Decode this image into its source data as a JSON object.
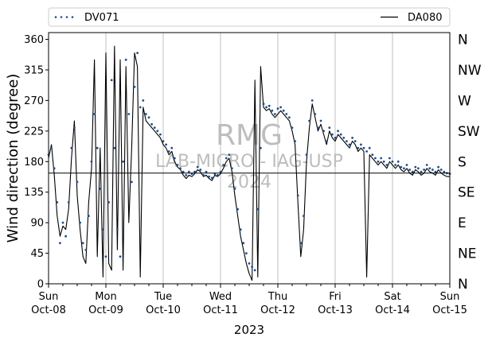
{
  "chart_data": {
    "type": "line",
    "ylabel": "Wind direction (degree)",
    "xlabel": "2023",
    "ylim": [
      0,
      370
    ],
    "xlim": [
      0,
      7
    ],
    "grid": "vertical lines at each day",
    "legend_position": "top, above plot",
    "yticks": [
      0,
      45,
      90,
      135,
      180,
      225,
      270,
      315,
      360
    ],
    "xticks": [
      {
        "day": 0,
        "top": "Sun",
        "bottom": "Oct-08"
      },
      {
        "day": 1,
        "top": "Mon",
        "bottom": "Oct-09"
      },
      {
        "day": 2,
        "top": "Tue",
        "bottom": "Oct-10"
      },
      {
        "day": 3,
        "top": "Wed",
        "bottom": "Oct-11"
      },
      {
        "day": 4,
        "top": "Thu",
        "bottom": "Oct-12"
      },
      {
        "day": 5,
        "top": "Fri",
        "bottom": "Oct-13"
      },
      {
        "day": 6,
        "top": "Sat",
        "bottom": "Oct-14"
      },
      {
        "day": 7,
        "top": "Sun",
        "bottom": "Oct-15"
      }
    ],
    "compass_labels": [
      {
        "value": 0,
        "label": "N"
      },
      {
        "value": 45,
        "label": "NE"
      },
      {
        "value": 90,
        "label": "E"
      },
      {
        "value": 135,
        "label": "SE"
      },
      {
        "value": 180,
        "label": "S"
      },
      {
        "value": 225,
        "label": "SW"
      },
      {
        "value": 270,
        "label": "W"
      },
      {
        "value": 315,
        "label": "NW"
      },
      {
        "value": 360,
        "label": "N"
      }
    ],
    "reference_line": 163,
    "watermark": [
      "RMG",
      "LAB-MICRO - IAG-USP",
      "2024"
    ],
    "series": [
      {
        "name": "DV071",
        "style": "dotted",
        "color": "#1f4e8c",
        "points": [
          [
            0.0,
            190
          ],
          [
            0.05,
            200
          ],
          [
            0.1,
            170
          ],
          [
            0.15,
            120
          ],
          [
            0.2,
            60
          ],
          [
            0.25,
            90
          ],
          [
            0.3,
            70
          ],
          [
            0.35,
            120
          ],
          [
            0.4,
            200
          ],
          [
            0.45,
            230
          ],
          [
            0.5,
            150
          ],
          [
            0.55,
            90
          ],
          [
            0.6,
            60
          ],
          [
            0.65,
            50
          ],
          [
            0.7,
            100
          ],
          [
            0.75,
            180
          ],
          [
            0.8,
            250
          ],
          [
            0.85,
            200
          ],
          [
            0.9,
            140
          ],
          [
            0.95,
            80
          ],
          [
            1.0,
            40
          ],
          [
            1.05,
            120
          ],
          [
            1.1,
            300
          ],
          [
            1.15,
            200
          ],
          [
            1.2,
            80
          ],
          [
            1.25,
            40
          ],
          [
            1.3,
            180
          ],
          [
            1.35,
            330
          ],
          [
            1.4,
            250
          ],
          [
            1.45,
            150
          ],
          [
            1.5,
            290
          ],
          [
            1.55,
            340
          ],
          [
            1.6,
            260
          ],
          [
            1.65,
            270
          ],
          [
            1.7,
            250
          ],
          [
            1.75,
            245
          ],
          [
            1.8,
            235
          ],
          [
            1.85,
            230
          ],
          [
            1.9,
            225
          ],
          [
            1.95,
            220
          ],
          [
            2.0,
            210
          ],
          [
            2.05,
            205
          ],
          [
            2.1,
            195
          ],
          [
            2.15,
            200
          ],
          [
            2.2,
            185
          ],
          [
            2.25,
            175
          ],
          [
            2.3,
            170
          ],
          [
            2.35,
            165
          ],
          [
            2.4,
            160
          ],
          [
            2.45,
            165
          ],
          [
            2.5,
            162
          ],
          [
            2.55,
            165
          ],
          [
            2.6,
            172
          ],
          [
            2.65,
            168
          ],
          [
            2.7,
            160
          ],
          [
            2.75,
            165
          ],
          [
            2.8,
            158
          ],
          [
            2.85,
            156
          ],
          [
            2.9,
            162
          ],
          [
            2.95,
            160
          ],
          [
            3.0,
            165
          ],
          [
            3.05,
            175
          ],
          [
            3.1,
            185
          ],
          [
            3.15,
            190
          ],
          [
            3.2,
            170
          ],
          [
            3.25,
            140
          ],
          [
            3.3,
            110
          ],
          [
            3.35,
            80
          ],
          [
            3.4,
            60
          ],
          [
            3.45,
            45
          ],
          [
            3.5,
            30
          ],
          [
            3.55,
            25
          ],
          [
            3.6,
            20
          ],
          [
            3.65,
            110
          ],
          [
            3.7,
            200
          ],
          [
            3.75,
            265
          ],
          [
            3.8,
            260
          ],
          [
            3.85,
            262
          ],
          [
            3.9,
            255
          ],
          [
            3.95,
            250
          ],
          [
            4.0,
            258
          ],
          [
            4.05,
            260
          ],
          [
            4.1,
            255
          ],
          [
            4.15,
            250
          ],
          [
            4.2,
            245
          ],
          [
            4.25,
            230
          ],
          [
            4.3,
            210
          ],
          [
            4.35,
            130
          ],
          [
            4.4,
            60
          ],
          [
            4.45,
            100
          ],
          [
            4.5,
            190
          ],
          [
            4.55,
            240
          ],
          [
            4.6,
            270
          ],
          [
            4.65,
            250
          ],
          [
            4.7,
            230
          ],
          [
            4.75,
            240
          ],
          [
            4.8,
            225
          ],
          [
            4.85,
            210
          ],
          [
            4.9,
            230
          ],
          [
            4.95,
            220
          ],
          [
            5.0,
            215
          ],
          [
            5.05,
            225
          ],
          [
            5.1,
            220
          ],
          [
            5.15,
            215
          ],
          [
            5.2,
            210
          ],
          [
            5.25,
            205
          ],
          [
            5.3,
            215
          ],
          [
            5.35,
            210
          ],
          [
            5.4,
            200
          ],
          [
            5.45,
            205
          ],
          [
            5.5,
            200
          ],
          [
            5.55,
            195
          ],
          [
            5.6,
            200
          ],
          [
            5.65,
            190
          ],
          [
            5.7,
            185
          ],
          [
            5.75,
            180
          ],
          [
            5.8,
            185
          ],
          [
            5.85,
            180
          ],
          [
            5.9,
            175
          ],
          [
            5.95,
            185
          ],
          [
            6.0,
            180
          ],
          [
            6.05,
            175
          ],
          [
            6.1,
            180
          ],
          [
            6.15,
            172
          ],
          [
            6.2,
            170
          ],
          [
            6.25,
            175
          ],
          [
            6.3,
            168
          ],
          [
            6.35,
            165
          ],
          [
            6.4,
            172
          ],
          [
            6.45,
            170
          ],
          [
            6.5,
            165
          ],
          [
            6.55,
            168
          ],
          [
            6.6,
            175
          ],
          [
            6.65,
            170
          ],
          [
            6.7,
            168
          ],
          [
            6.75,
            165
          ],
          [
            6.8,
            172
          ],
          [
            6.85,
            168
          ],
          [
            6.9,
            165
          ],
          [
            6.95,
            163
          ],
          [
            7.0,
            162
          ]
        ]
      },
      {
        "name": "DA080",
        "style": "solid",
        "color": "#000000",
        "points": [
          [
            0.0,
            185
          ],
          [
            0.05,
            205
          ],
          [
            0.1,
            160
          ],
          [
            0.15,
            100
          ],
          [
            0.2,
            70
          ],
          [
            0.25,
            85
          ],
          [
            0.3,
            80
          ],
          [
            0.35,
            110
          ],
          [
            0.4,
            185
          ],
          [
            0.45,
            240
          ],
          [
            0.5,
            130
          ],
          [
            0.55,
            80
          ],
          [
            0.6,
            40
          ],
          [
            0.65,
            30
          ],
          [
            0.7,
            120
          ],
          [
            0.75,
            170
          ],
          [
            0.8,
            330
          ],
          [
            0.85,
            40
          ],
          [
            0.9,
            200
          ],
          [
            0.95,
            10
          ],
          [
            1.0,
            340
          ],
          [
            1.05,
            30
          ],
          [
            1.1,
            20
          ],
          [
            1.15,
            350
          ],
          [
            1.2,
            50
          ],
          [
            1.25,
            330
          ],
          [
            1.3,
            20
          ],
          [
            1.35,
            320
          ],
          [
            1.4,
            90
          ],
          [
            1.45,
            200
          ],
          [
            1.5,
            340
          ],
          [
            1.55,
            320
          ],
          [
            1.6,
            10
          ],
          [
            1.65,
            260
          ],
          [
            1.7,
            240
          ],
          [
            1.75,
            235
          ],
          [
            1.8,
            230
          ],
          [
            1.85,
            225
          ],
          [
            1.9,
            220
          ],
          [
            1.95,
            215
          ],
          [
            2.0,
            205
          ],
          [
            2.05,
            200
          ],
          [
            2.1,
            190
          ],
          [
            2.15,
            195
          ],
          [
            2.2,
            180
          ],
          [
            2.25,
            172
          ],
          [
            2.3,
            168
          ],
          [
            2.35,
            160
          ],
          [
            2.4,
            155
          ],
          [
            2.45,
            160
          ],
          [
            2.5,
            158
          ],
          [
            2.55,
            162
          ],
          [
            2.6,
            168
          ],
          [
            2.65,
            165
          ],
          [
            2.7,
            158
          ],
          [
            2.75,
            160
          ],
          [
            2.8,
            155
          ],
          [
            2.85,
            152
          ],
          [
            2.9,
            160
          ],
          [
            2.95,
            158
          ],
          [
            3.0,
            162
          ],
          [
            3.05,
            170
          ],
          [
            3.1,
            180
          ],
          [
            3.15,
            185
          ],
          [
            3.2,
            165
          ],
          [
            3.25,
            130
          ],
          [
            3.3,
            100
          ],
          [
            3.35,
            70
          ],
          [
            3.4,
            50
          ],
          [
            3.45,
            30
          ],
          [
            3.5,
            15
          ],
          [
            3.55,
            5
          ],
          [
            3.6,
            300
          ],
          [
            3.65,
            10
          ],
          [
            3.7,
            320
          ],
          [
            3.75,
            260
          ],
          [
            3.8,
            255
          ],
          [
            3.85,
            258
          ],
          [
            3.9,
            250
          ],
          [
            3.95,
            245
          ],
          [
            4.0,
            250
          ],
          [
            4.05,
            255
          ],
          [
            4.1,
            250
          ],
          [
            4.15,
            245
          ],
          [
            4.2,
            240
          ],
          [
            4.25,
            225
          ],
          [
            4.3,
            205
          ],
          [
            4.35,
            120
          ],
          [
            4.4,
            40
          ],
          [
            4.45,
            80
          ],
          [
            4.5,
            180
          ],
          [
            4.55,
            230
          ],
          [
            4.6,
            265
          ],
          [
            4.65,
            245
          ],
          [
            4.7,
            225
          ],
          [
            4.75,
            235
          ],
          [
            4.8,
            220
          ],
          [
            4.85,
            205
          ],
          [
            4.9,
            225
          ],
          [
            4.95,
            215
          ],
          [
            5.0,
            210
          ],
          [
            5.05,
            220
          ],
          [
            5.1,
            215
          ],
          [
            5.15,
            210
          ],
          [
            5.2,
            205
          ],
          [
            5.25,
            200
          ],
          [
            5.3,
            210
          ],
          [
            5.35,
            205
          ],
          [
            5.4,
            195
          ],
          [
            5.45,
            200
          ],
          [
            5.5,
            195
          ],
          [
            5.55,
            10
          ],
          [
            5.6,
            190
          ],
          [
            5.65,
            185
          ],
          [
            5.7,
            180
          ],
          [
            5.75,
            175
          ],
          [
            5.8,
            180
          ],
          [
            5.85,
            175
          ],
          [
            5.9,
            170
          ],
          [
            5.95,
            180
          ],
          [
            6.0,
            175
          ],
          [
            6.05,
            170
          ],
          [
            6.1,
            175
          ],
          [
            6.15,
            168
          ],
          [
            6.2,
            165
          ],
          [
            6.25,
            170
          ],
          [
            6.3,
            163
          ],
          [
            6.35,
            160
          ],
          [
            6.4,
            168
          ],
          [
            6.45,
            165
          ],
          [
            6.5,
            160
          ],
          [
            6.55,
            163
          ],
          [
            6.6,
            170
          ],
          [
            6.65,
            165
          ],
          [
            6.7,
            163
          ],
          [
            6.75,
            160
          ],
          [
            6.8,
            168
          ],
          [
            6.85,
            163
          ],
          [
            6.9,
            160
          ],
          [
            6.95,
            158
          ],
          [
            7.0,
            158
          ]
        ]
      }
    ]
  }
}
